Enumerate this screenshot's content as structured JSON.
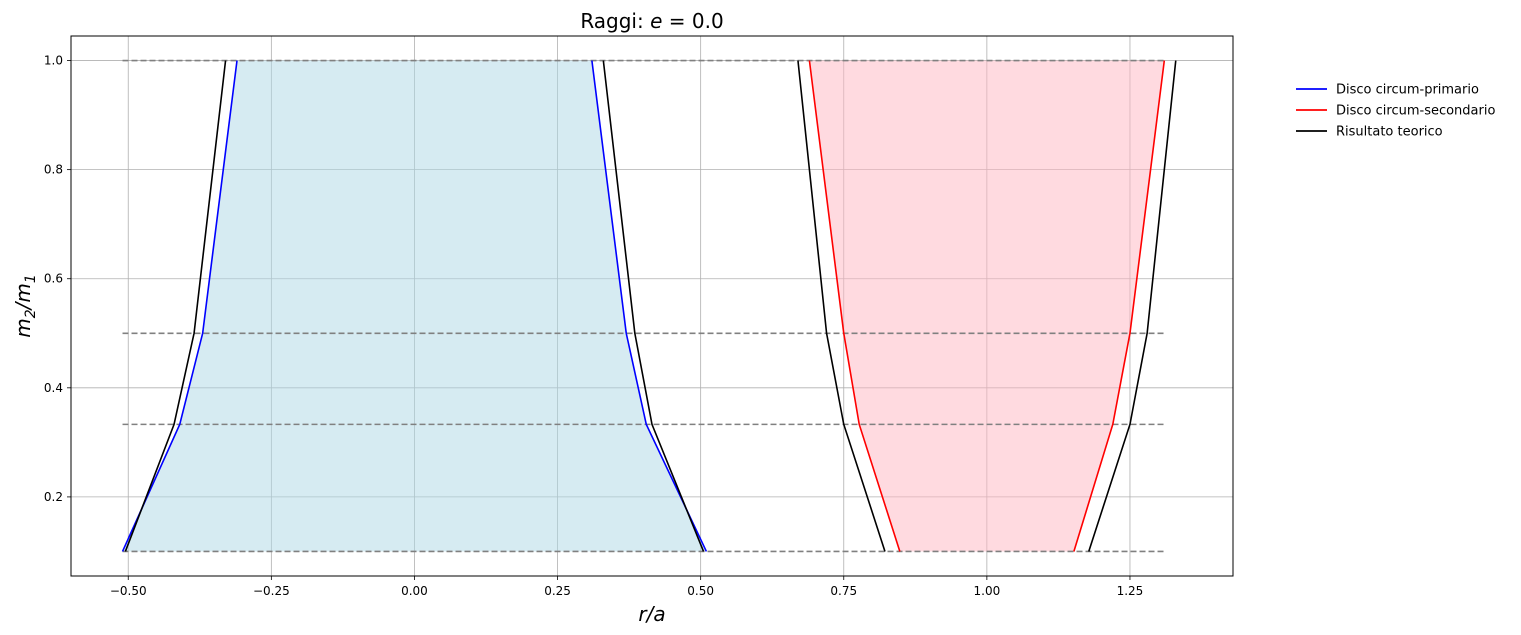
{
  "chart_data": {
    "type": "line",
    "title_prefix": "Raggi: ",
    "title_var": "e",
    "title_suffix": " = 0.0",
    "xlabel": "r/a",
    "ylabel": "m2/m1",
    "xlim": [
      -0.6,
      1.43
    ],
    "ylim": [
      0.055,
      1.045
    ],
    "xticks": [
      -0.5,
      -0.25,
      0.0,
      0.25,
      0.5,
      0.75,
      1.0,
      1.25
    ],
    "xtick_labels": [
      "−0.50",
      "−0.25",
      "0.00",
      "0.25",
      "0.50",
      "0.75",
      "1.00",
      "1.25"
    ],
    "yticks": [
      0.2,
      0.4,
      0.6,
      0.8,
      1.0
    ],
    "ytick_labels": [
      "0.2",
      "0.4",
      "0.6",
      "0.8",
      "1.0"
    ],
    "grid": true,
    "legend_position": "outside-right",
    "y_levels": [
      0.1,
      0.333,
      0.5,
      1.0
    ],
    "hlines": {
      "y": [
        0.1,
        0.333,
        0.5,
        1.0
      ],
      "xmin": -0.51,
      "xmax": 1.31,
      "color": "#808080",
      "style": "dashed"
    },
    "series": [
      {
        "name": "Disco circum-primario",
        "color": "#0000ff",
        "fill": "#add8e6",
        "left_x": [
          -0.51,
          -0.41,
          -0.37,
          -0.31
        ],
        "right_x": [
          0.51,
          0.405,
          0.37,
          0.31
        ]
      },
      {
        "name": "Disco circum-secondario",
        "color": "#ff0000",
        "fill": "#ffb6c1",
        "left_x": [
          0.848,
          0.777,
          0.75,
          0.69
        ],
        "right_x": [
          1.152,
          1.22,
          1.25,
          1.31
        ]
      },
      {
        "name": "Risultato teorico",
        "color": "#000000",
        "groups": [
          {
            "left_x": [
              -0.505,
              -0.42,
              -0.385,
              -0.33
            ],
            "right_x": [
              0.505,
              0.415,
              0.385,
              0.33
            ]
          },
          {
            "left_x": [
              0.822,
              0.75,
              0.72,
              0.67
            ],
            "right_x": [
              1.178,
              1.25,
              1.28,
              1.33
            ]
          }
        ]
      }
    ]
  }
}
